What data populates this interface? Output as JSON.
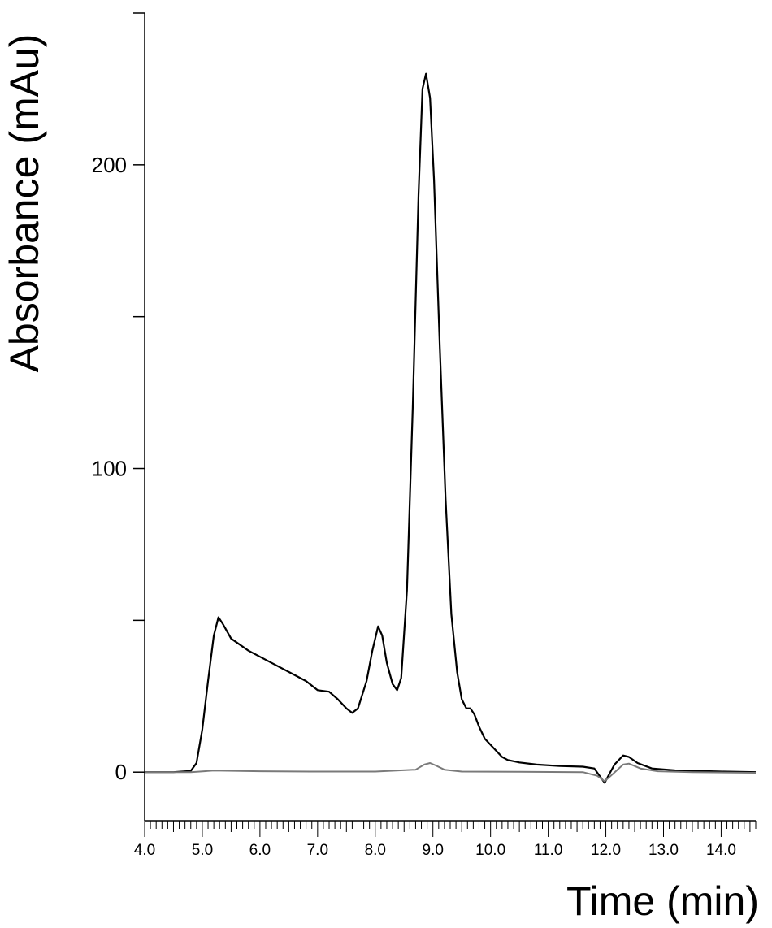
{
  "chart_data": {
    "type": "line",
    "xlabel": "Time (min)",
    "ylabel": "Absorbance (mAu)",
    "xlim": [
      4.0,
      14.6
    ],
    "ylim": [
      -16,
      250
    ],
    "x_ticks": [
      "4.0",
      "5.0",
      "6.0",
      "7.0",
      "8.0",
      "9.0",
      "10.0",
      "11.0",
      "12.0",
      "13.0",
      "14.0"
    ],
    "y_ticks": [
      "0",
      "100",
      "200"
    ],
    "y_minor_ticks": [
      50,
      150,
      250
    ],
    "grid": false,
    "series": [
      {
        "color": "#000000",
        "points": [
          [
            4.0,
            0.0
          ],
          [
            4.5,
            0.0
          ],
          [
            4.8,
            0.4
          ],
          [
            4.9,
            3
          ],
          [
            5.0,
            14
          ],
          [
            5.1,
            30
          ],
          [
            5.2,
            45
          ],
          [
            5.28,
            51
          ],
          [
            5.35,
            49
          ],
          [
            5.5,
            44
          ],
          [
            5.8,
            40
          ],
          [
            6.2,
            36
          ],
          [
            6.6,
            32
          ],
          [
            6.8,
            30
          ],
          [
            7.0,
            27
          ],
          [
            7.2,
            26.5
          ],
          [
            7.35,
            24
          ],
          [
            7.5,
            21
          ],
          [
            7.6,
            19.5
          ],
          [
            7.7,
            21
          ],
          [
            7.85,
            30
          ],
          [
            7.95,
            40
          ],
          [
            8.05,
            48
          ],
          [
            8.12,
            45
          ],
          [
            8.2,
            36
          ],
          [
            8.3,
            29
          ],
          [
            8.38,
            27
          ],
          [
            8.45,
            31
          ],
          [
            8.55,
            60
          ],
          [
            8.65,
            120
          ],
          [
            8.75,
            190
          ],
          [
            8.82,
            225
          ],
          [
            8.88,
            230
          ],
          [
            8.95,
            222
          ],
          [
            9.02,
            195
          ],
          [
            9.12,
            140
          ],
          [
            9.22,
            90
          ],
          [
            9.32,
            52
          ],
          [
            9.42,
            33
          ],
          [
            9.5,
            24
          ],
          [
            9.58,
            21
          ],
          [
            9.65,
            21
          ],
          [
            9.72,
            19
          ],
          [
            9.8,
            15
          ],
          [
            9.9,
            11
          ],
          [
            10.0,
            9
          ],
          [
            10.1,
            7
          ],
          [
            10.2,
            5
          ],
          [
            10.3,
            4
          ],
          [
            10.5,
            3.2
          ],
          [
            10.8,
            2.5
          ],
          [
            11.2,
            2.0
          ],
          [
            11.6,
            1.8
          ],
          [
            11.8,
            1.2
          ],
          [
            11.9,
            -1.5
          ],
          [
            11.98,
            -3.5
          ],
          [
            12.05,
            -1.0
          ],
          [
            12.15,
            2.5
          ],
          [
            12.3,
            5.5
          ],
          [
            12.4,
            5.0
          ],
          [
            12.55,
            3.0
          ],
          [
            12.8,
            1.2
          ],
          [
            13.2,
            0.6
          ],
          [
            14.0,
            0.2
          ],
          [
            14.6,
            0.0
          ]
        ]
      },
      {
        "color": "#7a7a7a",
        "points": [
          [
            4.0,
            0.0
          ],
          [
            4.8,
            0.0
          ],
          [
            5.2,
            0.5
          ],
          [
            6.0,
            0.3
          ],
          [
            7.0,
            0.2
          ],
          [
            8.0,
            0.2
          ],
          [
            8.7,
            0.8
          ],
          [
            8.85,
            2.5
          ],
          [
            8.95,
            3.0
          ],
          [
            9.05,
            2.2
          ],
          [
            9.2,
            0.8
          ],
          [
            9.5,
            0.2
          ],
          [
            10.5,
            0.1
          ],
          [
            11.6,
            0.0
          ],
          [
            11.85,
            -1.2
          ],
          [
            11.98,
            -3.0
          ],
          [
            12.1,
            -1.0
          ],
          [
            12.3,
            2.5
          ],
          [
            12.4,
            2.8
          ],
          [
            12.6,
            1.2
          ],
          [
            12.9,
            0.3
          ],
          [
            13.5,
            0.0
          ],
          [
            14.6,
            -0.2
          ]
        ]
      }
    ]
  }
}
